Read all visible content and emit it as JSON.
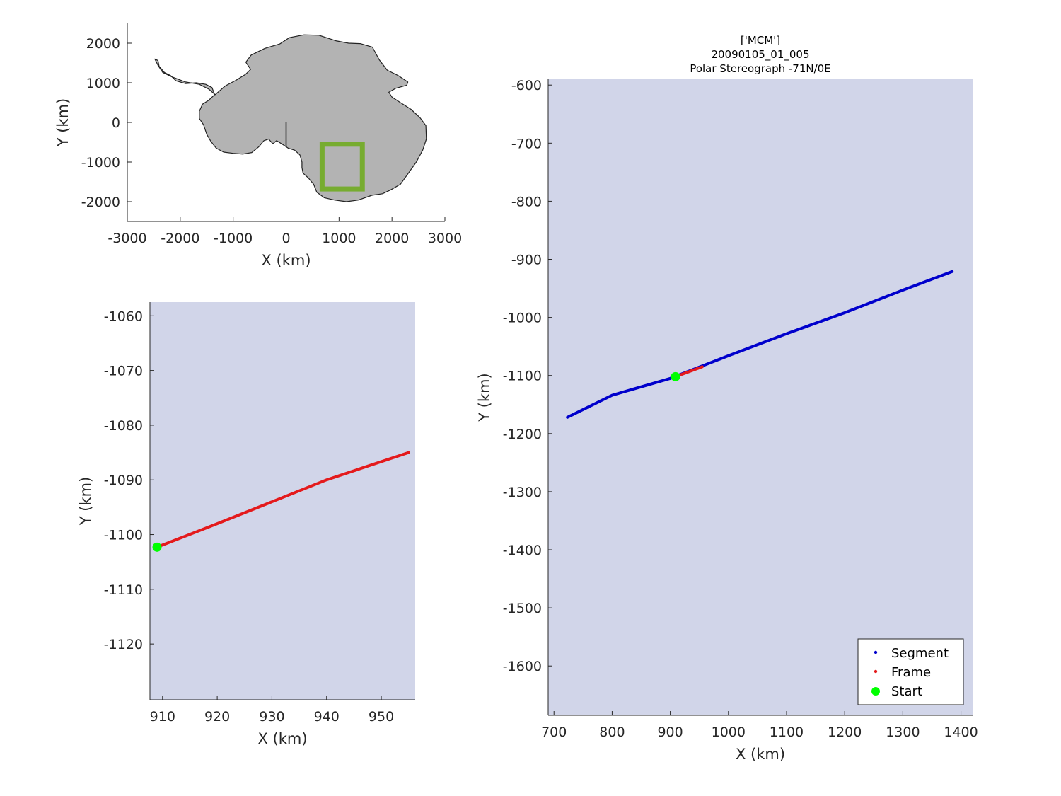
{
  "colors": {
    "land": "#b3b3b3",
    "coast": "#222222",
    "box": "#77ac30",
    "segment": "#0000cc",
    "frame": "#e41a1c",
    "start": "#00ff00",
    "imagery": "#d1d5e9"
  },
  "chart_data": [
    {
      "id": "overview",
      "type": "scatter",
      "title": "",
      "xlabel": "X (km)",
      "ylabel": "Y (km)",
      "xlim": [
        -3000,
        3000
      ],
      "ylim": [
        -2500,
        2500
      ],
      "xticks": [
        -3000,
        -2000,
        -1000,
        0,
        1000,
        2000,
        3000
      ],
      "yticks": [
        2000,
        1000,
        0,
        -1000,
        -2000
      ],
      "grid": false,
      "land_outline": "antarctica",
      "line_segment": [
        [
          0,
          0
        ],
        [
          0,
          -620
        ]
      ],
      "box": {
        "x": [
          680,
          1440
        ],
        "y": [
          -1680,
          -550
        ]
      }
    },
    {
      "id": "frame-zoom",
      "type": "line",
      "title": "",
      "xlabel": "X (km)",
      "ylabel": "Y (km)",
      "xlim": [
        907.7,
        956.2
      ],
      "ylim": [
        -1130.2,
        -1057.5
      ],
      "xticks": [
        910,
        920,
        930,
        940,
        950
      ],
      "yticks": [
        -1060,
        -1070,
        -1080,
        -1090,
        -1100,
        -1110,
        -1120
      ],
      "grid": false,
      "series": [
        {
          "name": "Frame",
          "x": [
            909.0,
            920.0,
            930.0,
            940.0,
            955.0
          ],
          "y": [
            -1102.3,
            -1098.0,
            -1094.0,
            -1090.0,
            -1085.0
          ]
        }
      ],
      "start": {
        "x": 909.0,
        "y": -1102.3
      }
    },
    {
      "id": "segment-map",
      "type": "line",
      "title": [
        "['MCM']",
        "20090105_01_005",
        "Polar Stereograph -71N/0E"
      ],
      "xlabel": "X (km)",
      "ylabel": "Y (km)",
      "xlim": [
        690,
        1420
      ],
      "ylim": [
        -1685,
        -590
      ],
      "xticks": [
        700,
        800,
        900,
        1000,
        1100,
        1200,
        1300,
        1400
      ],
      "yticks": [
        -600,
        -700,
        -800,
        -900,
        -1000,
        -1100,
        -1200,
        -1300,
        -1400,
        -1500,
        -1600
      ],
      "grid": false,
      "legend_position": "bottom-right",
      "series": [
        {
          "name": "Segment",
          "x": [
            723,
            800,
            900,
            1000,
            1100,
            1200,
            1300,
            1385
          ],
          "y": [
            -1172,
            -1134,
            -1105,
            -1066,
            -1028,
            -992,
            -953,
            -921
          ]
        },
        {
          "name": "Frame",
          "x": [
            909,
            955
          ],
          "y": [
            -1102,
            -1085
          ]
        }
      ],
      "start": {
        "name": "Start",
        "x": 909,
        "y": -1102
      }
    }
  ]
}
